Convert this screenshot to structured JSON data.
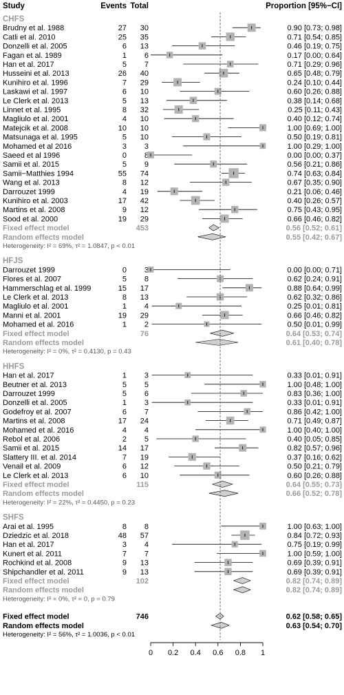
{
  "header": {
    "study": "Study",
    "events": "Events",
    "total": "Total",
    "proportion": "Proportion [95%−CI]"
  },
  "chart_data": {
    "type": "forest",
    "xlim": [
      0,
      1
    ],
    "xticks": [
      "0",
      "0.2",
      "0.4",
      "0.6",
      "0.8",
      "1"
    ],
    "reference_line": 0.62,
    "colors": {
      "box": "#b3b3b3",
      "diamond": "#d0d0d0",
      "summary_text": "#9a9a9a",
      "ref_line": "#606060"
    },
    "groups": [
      {
        "name": "CHFS",
        "studies": [
          {
            "study": "Brudny et al. 1988",
            "events": "27",
            "total": "30",
            "est": 0.9,
            "lo": 0.73,
            "hi": 0.98,
            "ci": "0.90 [0.73; 0.98]"
          },
          {
            "study": "Catli et al.  2010",
            "events": "25",
            "total": "35",
            "est": 0.71,
            "lo": 0.54,
            "hi": 0.85,
            "ci": "0.71 [0.54; 0.85]"
          },
          {
            "study": "Donzelli et al.  2005",
            "events": "6",
            "total": "13",
            "est": 0.46,
            "lo": 0.19,
            "hi": 0.75,
            "ci": "0.46 [0.19; 0.75]"
          },
          {
            "study": "Fagan et al. 1989",
            "events": "1",
            "total": "6",
            "est": 0.17,
            "lo": 0.0,
            "hi": 0.64,
            "ci": "0.17 [0.00; 0.64]"
          },
          {
            "study": "Han et al. 2017",
            "events": "5",
            "total": "7",
            "est": 0.71,
            "lo": 0.29,
            "hi": 0.96,
            "ci": "0.71 [0.29; 0.96]"
          },
          {
            "study": "Husseini et al. 2013",
            "events": "26",
            "total": "40",
            "est": 0.65,
            "lo": 0.48,
            "hi": 0.79,
            "ci": "0.65 [0.48; 0.79]"
          },
          {
            "study": "Kunihiro et al.  1996",
            "events": "7",
            "total": "29",
            "est": 0.24,
            "lo": 0.1,
            "hi": 0.44,
            "ci": "0.24 [0.10; 0.44]"
          },
          {
            "study": "Laskawi et al.  1997",
            "events": "6",
            "total": "10",
            "est": 0.6,
            "lo": 0.26,
            "hi": 0.88,
            "ci": "0.60 [0.26; 0.88]"
          },
          {
            "study": "Le Clerk et al. 2013",
            "events": "5",
            "total": "13",
            "est": 0.38,
            "lo": 0.14,
            "hi": 0.68,
            "ci": "0.38 [0.14; 0.68]"
          },
          {
            "study": "Linnet et al. 1995",
            "events": "8",
            "total": "32",
            "est": 0.25,
            "lo": 0.11,
            "hi": 0.43,
            "ci": "0.25 [0.11; 0.43]"
          },
          {
            "study": "Magliulo et al. 2001",
            "events": "4",
            "total": "10",
            "est": 0.4,
            "lo": 0.12,
            "hi": 0.74,
            "ci": "0.40 [0.12; 0.74]"
          },
          {
            "study": "Matejcik et al. 2008",
            "events": "10",
            "total": "10",
            "est": 1.0,
            "lo": 0.69,
            "hi": 1.0,
            "ci": "1.00 [0.69; 1.00]"
          },
          {
            "study": "Matsunaga et al. 1995",
            "events": "5",
            "total": "10",
            "est": 0.5,
            "lo": 0.19,
            "hi": 0.81,
            "ci": "0.50 [0.19; 0.81]"
          },
          {
            "study": "Mohamed et al 2016",
            "events": "3",
            "total": "3",
            "est": 1.0,
            "lo": 0.29,
            "hi": 1.0,
            "ci": "1.00 [0.29; 1.00]"
          },
          {
            "study": "Saeed et al 1996",
            "events": "0",
            "total": "8",
            "est": 0.0,
            "lo": 0.0,
            "hi": 0.37,
            "ci": "0.00 [0.00; 0.37]"
          },
          {
            "study": "Samii et al. 2015",
            "events": "5",
            "total": "9",
            "est": 0.56,
            "lo": 0.21,
            "hi": 0.86,
            "ci": "0.56 [0.21; 0.86]"
          },
          {
            "study": "Samii−Matthies 1994",
            "events": "55",
            "total": "74",
            "est": 0.74,
            "lo": 0.63,
            "hi": 0.84,
            "ci": "0.74 [0.63; 0.84]"
          },
          {
            "study": "Wang et al. 2013",
            "events": "8",
            "total": "12",
            "est": 0.67,
            "lo": 0.35,
            "hi": 0.9,
            "ci": "0.67 [0.35; 0.90]"
          },
          {
            "study": "Darrouzet 1999",
            "events": "4",
            "total": "19",
            "est": 0.21,
            "lo": 0.06,
            "hi": 0.46,
            "ci": "0.21 [0.06; 0.46]"
          },
          {
            "study": "Kunihiro et al.  2003",
            "events": "17",
            "total": "42",
            "est": 0.4,
            "lo": 0.26,
            "hi": 0.57,
            "ci": "0.40 [0.26; 0.57]"
          },
          {
            "study": "Martins et al. 2008",
            "events": "9",
            "total": "12",
            "est": 0.75,
            "lo": 0.43,
            "hi": 0.95,
            "ci": "0.75 [0.43; 0.95]"
          },
          {
            "study": "Sood et al. 2000",
            "events": "19",
            "total": "29",
            "est": 0.66,
            "lo": 0.46,
            "hi": 0.82,
            "ci": "0.66 [0.46; 0.82]"
          }
        ],
        "fixed": {
          "label": "Fixed effect model",
          "total": "453",
          "est": 0.56,
          "lo": 0.52,
          "hi": 0.61,
          "ci": "0.56 [0.52; 0.61]"
        },
        "random": {
          "label": "Random effects model",
          "est": 0.55,
          "lo": 0.42,
          "hi": 0.67,
          "ci": "0.55 [0.42; 0.67]"
        },
        "heterogeneity": "Heterogeneity: I² = 69%, τ² = 1.0847, p < 0.01"
      },
      {
        "name": "HFJS",
        "studies": [
          {
            "study": "Darrouzet 1999",
            "events": "0",
            "total": "3",
            "est": 0.0,
            "lo": 0.0,
            "hi": 0.71,
            "ci": "0.00 [0.00; 0.71]"
          },
          {
            "study": "Flores et al.  2007",
            "events": "5",
            "total": "8",
            "est": 0.62,
            "lo": 0.24,
            "hi": 0.91,
            "ci": "0.62 [0.24; 0.91]"
          },
          {
            "study": "Hammerschlag et al. 1999",
            "events": "15",
            "total": "17",
            "est": 0.88,
            "lo": 0.64,
            "hi": 0.99,
            "ci": "0.88 [0.64; 0.99]"
          },
          {
            "study": "Le Clerk et al. 2013",
            "events": "8",
            "total": "13",
            "est": 0.62,
            "lo": 0.32,
            "hi": 0.86,
            "ci": "0.62 [0.32; 0.86]"
          },
          {
            "study": "Magliulo et al. 2001",
            "events": "1",
            "total": "4",
            "est": 0.25,
            "lo": 0.01,
            "hi": 0.81,
            "ci": "0.25 [0.01; 0.81]"
          },
          {
            "study": "Manni et al. 2001",
            "events": "19",
            "total": "29",
            "est": 0.66,
            "lo": 0.46,
            "hi": 0.82,
            "ci": "0.66 [0.46; 0.82]"
          },
          {
            "study": "Mohamed et al. 2016",
            "events": "1",
            "total": "2",
            "est": 0.5,
            "lo": 0.01,
            "hi": 0.99,
            "ci": "0.50 [0.01; 0.99]"
          }
        ],
        "fixed": {
          "label": "Fixed effect model",
          "total": "76",
          "est": 0.64,
          "lo": 0.53,
          "hi": 0.74,
          "ci": "0.64 [0.53; 0.74]"
        },
        "random": {
          "label": "Random effects model",
          "est": 0.61,
          "lo": 0.4,
          "hi": 0.78,
          "ci": "0.61 [0.40; 0.78]"
        },
        "heterogeneity": "Heterogeneity: I² = 0%, τ² = 0.4130, p = 0.43"
      },
      {
        "name": "HHFS",
        "studies": [
          {
            "study": "Han et al. 2017",
            "events": "1",
            "total": "3",
            "est": 0.33,
            "lo": 0.01,
            "hi": 0.91,
            "ci": "0.33 [0.01; 0.91]"
          },
          {
            "study": "Beutner et al. 2013",
            "events": "5",
            "total": "5",
            "est": 1.0,
            "lo": 0.48,
            "hi": 1.0,
            "ci": "1.00 [0.48; 1.00]"
          },
          {
            "study": "Darrouzet 1999",
            "events": "5",
            "total": "6",
            "est": 0.83,
            "lo": 0.36,
            "hi": 1.0,
            "ci": "0.83 [0.36; 1.00]"
          },
          {
            "study": "Donzelli et al.  2005",
            "events": "1",
            "total": "3",
            "est": 0.33,
            "lo": 0.01,
            "hi": 0.91,
            "ci": "0.33 [0.01; 0.91]"
          },
          {
            "study": "Godefroy et al. 2007",
            "events": "6",
            "total": "7",
            "est": 0.86,
            "lo": 0.42,
            "hi": 1.0,
            "ci": "0.86 [0.42; 1.00]"
          },
          {
            "study": "Martins et al. 2008",
            "events": "17",
            "total": "24",
            "est": 0.71,
            "lo": 0.49,
            "hi": 0.87,
            "ci": "0.71 [0.49; 0.87]"
          },
          {
            "study": "Mohamed et al. 2016",
            "events": "4",
            "total": "4",
            "est": 1.0,
            "lo": 0.4,
            "hi": 1.0,
            "ci": "1.00 [0.40; 1.00]"
          },
          {
            "study": "Rebol et al. 2006",
            "events": "2",
            "total": "5",
            "est": 0.4,
            "lo": 0.05,
            "hi": 0.85,
            "ci": "0.40 [0.05; 0.85]"
          },
          {
            "study": "Samii et al. 2015",
            "events": "14",
            "total": "17",
            "est": 0.82,
            "lo": 0.57,
            "hi": 0.96,
            "ci": "0.82 [0.57; 0.96]"
          },
          {
            "study": "Slattery III. et al.  2014",
            "events": "7",
            "total": "19",
            "est": 0.37,
            "lo": 0.16,
            "hi": 0.62,
            "ci": "0.37 [0.16; 0.62]"
          },
          {
            "study": "Venail et al. 2009",
            "events": "6",
            "total": "12",
            "est": 0.5,
            "lo": 0.21,
            "hi": 0.79,
            "ci": "0.50 [0.21; 0.79]"
          },
          {
            "study": "Le Clerk et al. 2013",
            "events": "6",
            "total": "10",
            "est": 0.6,
            "lo": 0.26,
            "hi": 0.88,
            "ci": "0.60 [0.26; 0.88]"
          }
        ],
        "fixed": {
          "label": "Fixed effect model",
          "total": "115",
          "est": 0.64,
          "lo": 0.55,
          "hi": 0.73,
          "ci": "0.64 [0.55; 0.73]"
        },
        "random": {
          "label": "Random effects model",
          "est": 0.66,
          "lo": 0.52,
          "hi": 0.78,
          "ci": "0.66 [0.52; 0.78]"
        },
        "heterogeneity": "Heterogeneity: I² = 22%, τ² = 0.4450, p = 0.23"
      },
      {
        "name": "SHFS",
        "studies": [
          {
            "study": "Arai et al. 1995",
            "events": "8",
            "total": "8",
            "est": 1.0,
            "lo": 0.63,
            "hi": 1.0,
            "ci": "1.00 [0.63; 1.00]"
          },
          {
            "study": "Dziedzic et al. 2018",
            "events": "48",
            "total": "57",
            "est": 0.84,
            "lo": 0.72,
            "hi": 0.93,
            "ci": "0.84 [0.72; 0.93]"
          },
          {
            "study": "Han et al. 2017",
            "events": "3",
            "total": "4",
            "est": 0.75,
            "lo": 0.19,
            "hi": 0.99,
            "ci": "0.75 [0.19; 0.99]"
          },
          {
            "study": "Kunert et al. 2011",
            "events": "7",
            "total": "7",
            "est": 1.0,
            "lo": 0.59,
            "hi": 1.0,
            "ci": "1.00 [0.59; 1.00]"
          },
          {
            "study": "Rochkind et al. 2008",
            "events": "9",
            "total": "13",
            "est": 0.69,
            "lo": 0.39,
            "hi": 0.91,
            "ci": "0.69 [0.39; 0.91]"
          },
          {
            "study": "Shipchandler et al. 2011",
            "events": "9",
            "total": "13",
            "est": 0.69,
            "lo": 0.39,
            "hi": 0.91,
            "ci": "0.69 [0.39; 0.91]"
          }
        ],
        "fixed": {
          "label": "Fixed effect model",
          "total": "102",
          "est": 0.82,
          "lo": 0.74,
          "hi": 0.89,
          "ci": "0.82 [0.74; 0.89]"
        },
        "random": {
          "label": "Random effects model",
          "est": 0.82,
          "lo": 0.74,
          "hi": 0.89,
          "ci": "0.82 [0.74; 0.89]"
        },
        "heterogeneity": "Heterogeneity: I² = 0%, τ² = 0, p = 0.79"
      }
    ],
    "overall": {
      "fixed": {
        "label": "Fixed effect model",
        "total": "746",
        "est": 0.62,
        "lo": 0.58,
        "hi": 0.65,
        "ci": "0.62 [0.58; 0.65]"
      },
      "random": {
        "label": "Random effects model",
        "est": 0.63,
        "lo": 0.54,
        "hi": 0.7,
        "ci": "0.63 [0.54; 0.70]"
      },
      "heterogeneity": "Heterogeneity: I² = 56%, τ² = 1.0036, p < 0.01"
    }
  }
}
